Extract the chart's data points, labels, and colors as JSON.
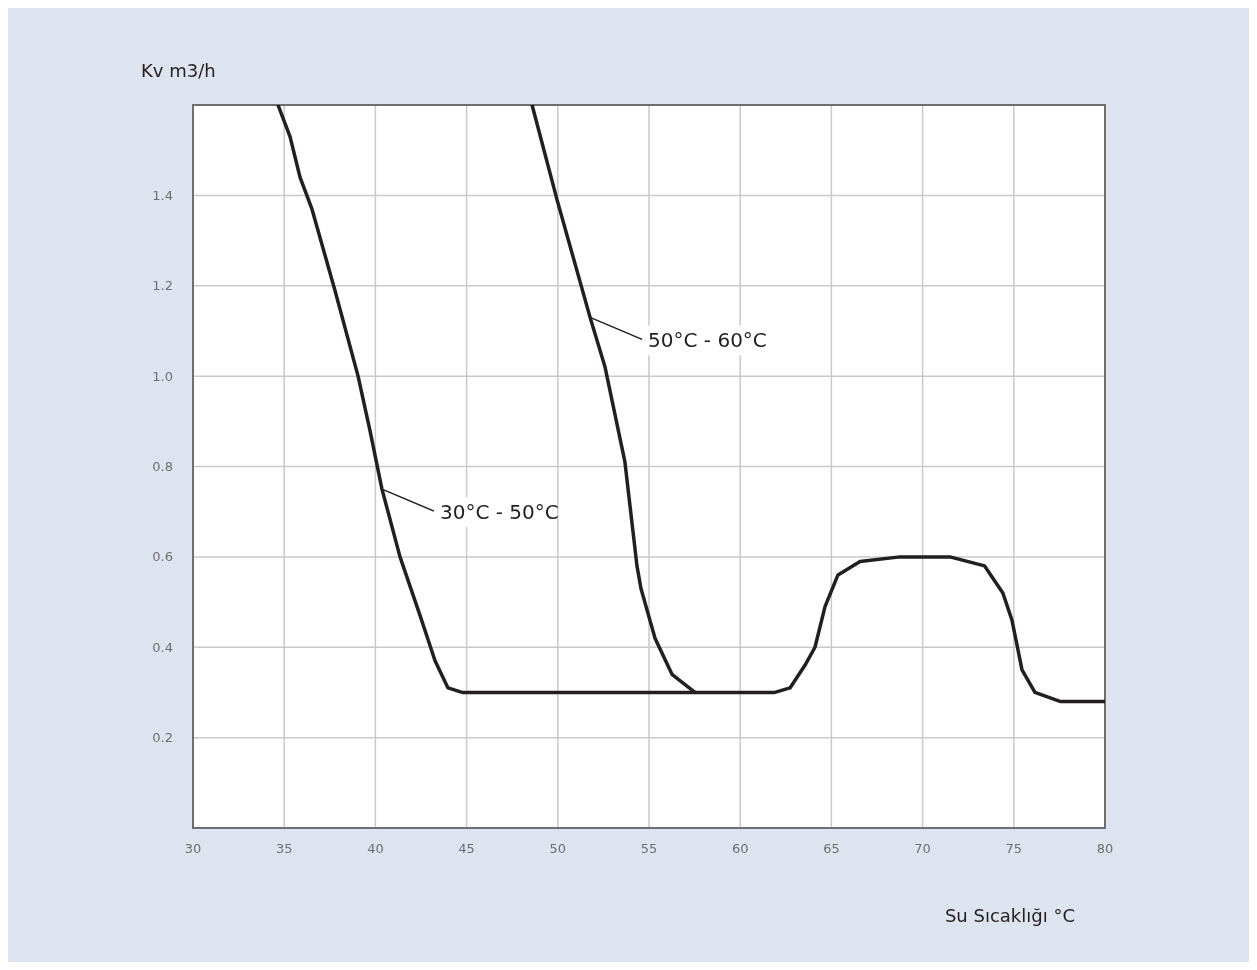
{
  "chart_data": {
    "type": "line",
    "xlabel": "Su Sıcaklığı °C",
    "ylabel": "Kv m3/h",
    "xlim": [
      30,
      80
    ],
    "xticks": [
      30,
      35,
      40,
      45,
      50,
      55,
      60,
      65,
      70,
      75,
      80
    ],
    "ylim": [
      0,
      1.6
    ],
    "yticks": [
      0.2,
      0.4,
      0.6,
      0.8,
      {
        "value": 1,
        "label": "1.0"
      },
      1.2,
      1.4
    ],
    "grid": true,
    "marker": "none",
    "line_style": "solid",
    "series": [
      {
        "color": "#231f20",
        "x": [
          34.66,
          35.32,
          35.87,
          36.52,
          37.78,
          39.05,
          39.7,
          40.36,
          41.35,
          42.45,
          43.27,
          43.98,
          44.75,
          61.9,
          62.73,
          63.55,
          64.1,
          64.65,
          65.36,
          66.57,
          68.76,
          71.5,
          73.4,
          74.4,
          74.9,
          75.45,
          76.16,
          77.53,
          80
        ],
        "values": [
          1.6,
          1.53,
          1.44,
          1.37,
          1.19,
          1.0,
          0.88,
          0.75,
          0.6,
          0.47,
          0.37,
          0.31,
          0.3,
          0.3,
          0.31,
          0.36,
          0.4,
          0.49,
          0.56,
          0.59,
          0.6,
          0.6,
          0.58,
          0.52,
          0.46,
          0.35,
          0.3,
          0.28,
          0.28
        ]
      },
      {
        "color": "#231f20",
        "x": [
          48.59,
          49.96,
          51.77,
          52.59,
          53.68,
          54.34,
          54.56,
          55.33,
          56.26,
          57.52
        ],
        "values": [
          1.6,
          1.39,
          1.13,
          1.02,
          0.81,
          0.58,
          0.53,
          0.42,
          0.34,
          0.3
        ]
      }
    ],
    "annotations": [
      {
        "text": "50°C - 60°C",
        "x": 51.77,
        "y": 1.13
      },
      {
        "text": "30°C - 50°C",
        "x": 40.36,
        "y": 0.75
      }
    ]
  }
}
